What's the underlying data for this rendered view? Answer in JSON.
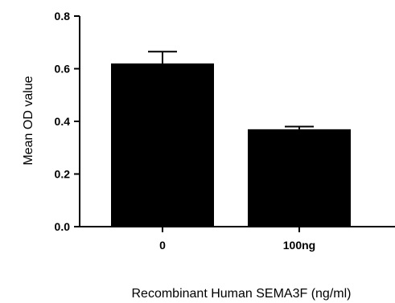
{
  "chart_data": {
    "type": "bar",
    "title": "",
    "xlabel": "Recombinant Human SEMA3F (ng/ml)",
    "ylabel": "Mean OD value",
    "categories": [
      "0",
      "100ng"
    ],
    "values": [
      0.62,
      0.37
    ],
    "error_upper": [
      0.665,
      0.38
    ],
    "ylim": [
      0.0,
      0.8
    ],
    "yticks": [
      "0.0",
      "0.2",
      "0.4",
      "0.6",
      "0.8"
    ],
    "bar_color": "#000000",
    "grid": false,
    "legend": "none"
  }
}
